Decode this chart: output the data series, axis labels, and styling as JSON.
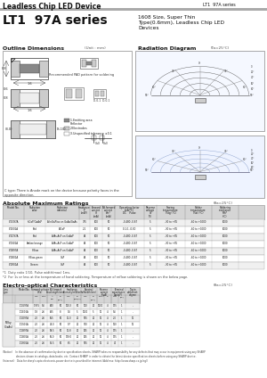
{
  "title_left": "Leadless Chip LED Device",
  "title_right": "LT1  97A series",
  "series_title": "LT1  97A series",
  "series_subtitle": "1608 Size, Super Thin\nType(0.6mm), Leadless Chip LED\nDevices",
  "section1": "Outline Dimensions",
  "section1_unit": "(Unit : mm)",
  "section2": "Radiation Diagram",
  "section2_unit": "(Ta=25°C)",
  "section3": "Absolute Maximum Ratings",
  "section3_unit": "(θa=25°C)",
  "section4": "Electro-optical Characteristics",
  "section4_unit": "(θa=25°C)",
  "bg_color": "#ffffff",
  "header_bar_color": "#aaaaaa",
  "table_header_bg": "#d0d0d0",
  "table_row_alt": "#f0f0f0",
  "abs_rows": [
    [
      "LT1G97A",
      "InGaP/GaAsP",
      "AlInGaP/as on GaAs/GaAs",
      "775",
      "100",
      "50",
      "-0.480",
      "-0.87",
      "5",
      "-30 to +85",
      "-60 to +1000",
      "1000"
    ],
    [
      "LT1E01A",
      "Red",
      "AlGaP",
      "2.1",
      "100",
      "50",
      "0.1:1",
      "-0.80",
      "5",
      "-30 to +85",
      "-60 to +1000",
      "1000"
    ],
    [
      "LT1D97A",
      "Red",
      "AlAs,AsP on GaAsP",
      "64",
      "100",
      "50",
      "-0.480",
      "-0.87",
      "5",
      "-30 to +85",
      "-60 to +1000",
      "1000"
    ],
    [
      "LT1S01A",
      "Amber/orange",
      "AlAs,AsP on GaAsP",
      "64",
      "100",
      "50",
      "-0.480",
      "-0.87",
      "5",
      "-30 to +85",
      "-60 to +1000",
      "1000"
    ],
    [
      "LT1B97A",
      "Yellow",
      "AlAs,AsP on GaAsP",
      "64",
      "100",
      "50",
      "-0.480",
      "-0.87",
      "5",
      "-30 to +85",
      "-60 to +1000",
      "1000"
    ],
    [
      "LT1B01A",
      "Yellow-green",
      "GaP",
      "64",
      "100",
      "50",
      "-0.480",
      "-0.87",
      "5",
      "-30 to +85",
      "-60 to +1000",
      "1000"
    ],
    [
      "LT1R01A",
      "Greeen",
      "GaP",
      "64",
      "100",
      "50",
      "-0.480",
      "-0.87",
      "5",
      "-30 to +85",
      "-60 to +1000",
      "1000"
    ]
  ],
  "eo_rows": [
    [
      "LT1G97A",
      "1.975",
      "5.6",
      "640",
      "50",
      "100.3",
      "50",
      "100",
      "20",
      "1000",
      "4",
      "175",
      "1",
      "-"
    ],
    [
      "LT1E01A",
      "1.8",
      "2.6",
      "625",
      "8",
      "1.6",
      "5",
      "1000",
      "5",
      "10",
      "4",
      "5.6",
      "1",
      "-"
    ],
    [
      "LT1D97A",
      "2.0",
      "2.6",
      "655",
      "50",
      "11.0",
      "20",
      "575",
      "20",
      "10",
      "4",
      "2.0",
      "1",
      "10"
    ],
    [
      "LT1S01A",
      "2.0",
      "2.6",
      "42.0",
      "50",
      "9.7",
      "20",
      "970",
      "20",
      "10",
      "4",
      "100",
      "1",
      "10"
    ],
    [
      "LT1B97A",
      "2.0",
      "2.6",
      "58.5",
      "50",
      "11.8",
      "20",
      "965",
      "20",
      "10",
      "4",
      "175",
      "1",
      "-"
    ],
    [
      "LT1B01A",
      "2.0",
      "2.6",
      "56.0",
      "50",
      "178.0",
      "20",
      "965",
      "20",
      "10",
      "4",
      "175",
      "1",
      "-"
    ],
    [
      "LT1R01A",
      "2.0",
      "2.6",
      "55.5",
      "50",
      "6.5",
      "20",
      "575",
      "20",
      "10",
      "4",
      "40",
      "1",
      "-"
    ]
  ],
  "notes": [
    "*1  Duty ratio 1/10, Pulse width(max) 1ms.",
    "*2  For 1s or less at the temperature of hand soldering. Temperature of reflow soldering is shown on the below page."
  ],
  "bottom_notes": [
    "(Notice)    In the absence of confirmation by device specification sheets, SHARP takes no responsibility for any defects that may occur in equipment using any SHARP",
    "                 devices shown in catalogs, data books, etc. Contact SHARP in order to obtain the latest device specification sheets before using any SHARP device.",
    "(Internet)   Data for sharp's opto-electronic-power device is provided for internet.(Address: http://www.sharp.co.jp/eg/)"
  ]
}
